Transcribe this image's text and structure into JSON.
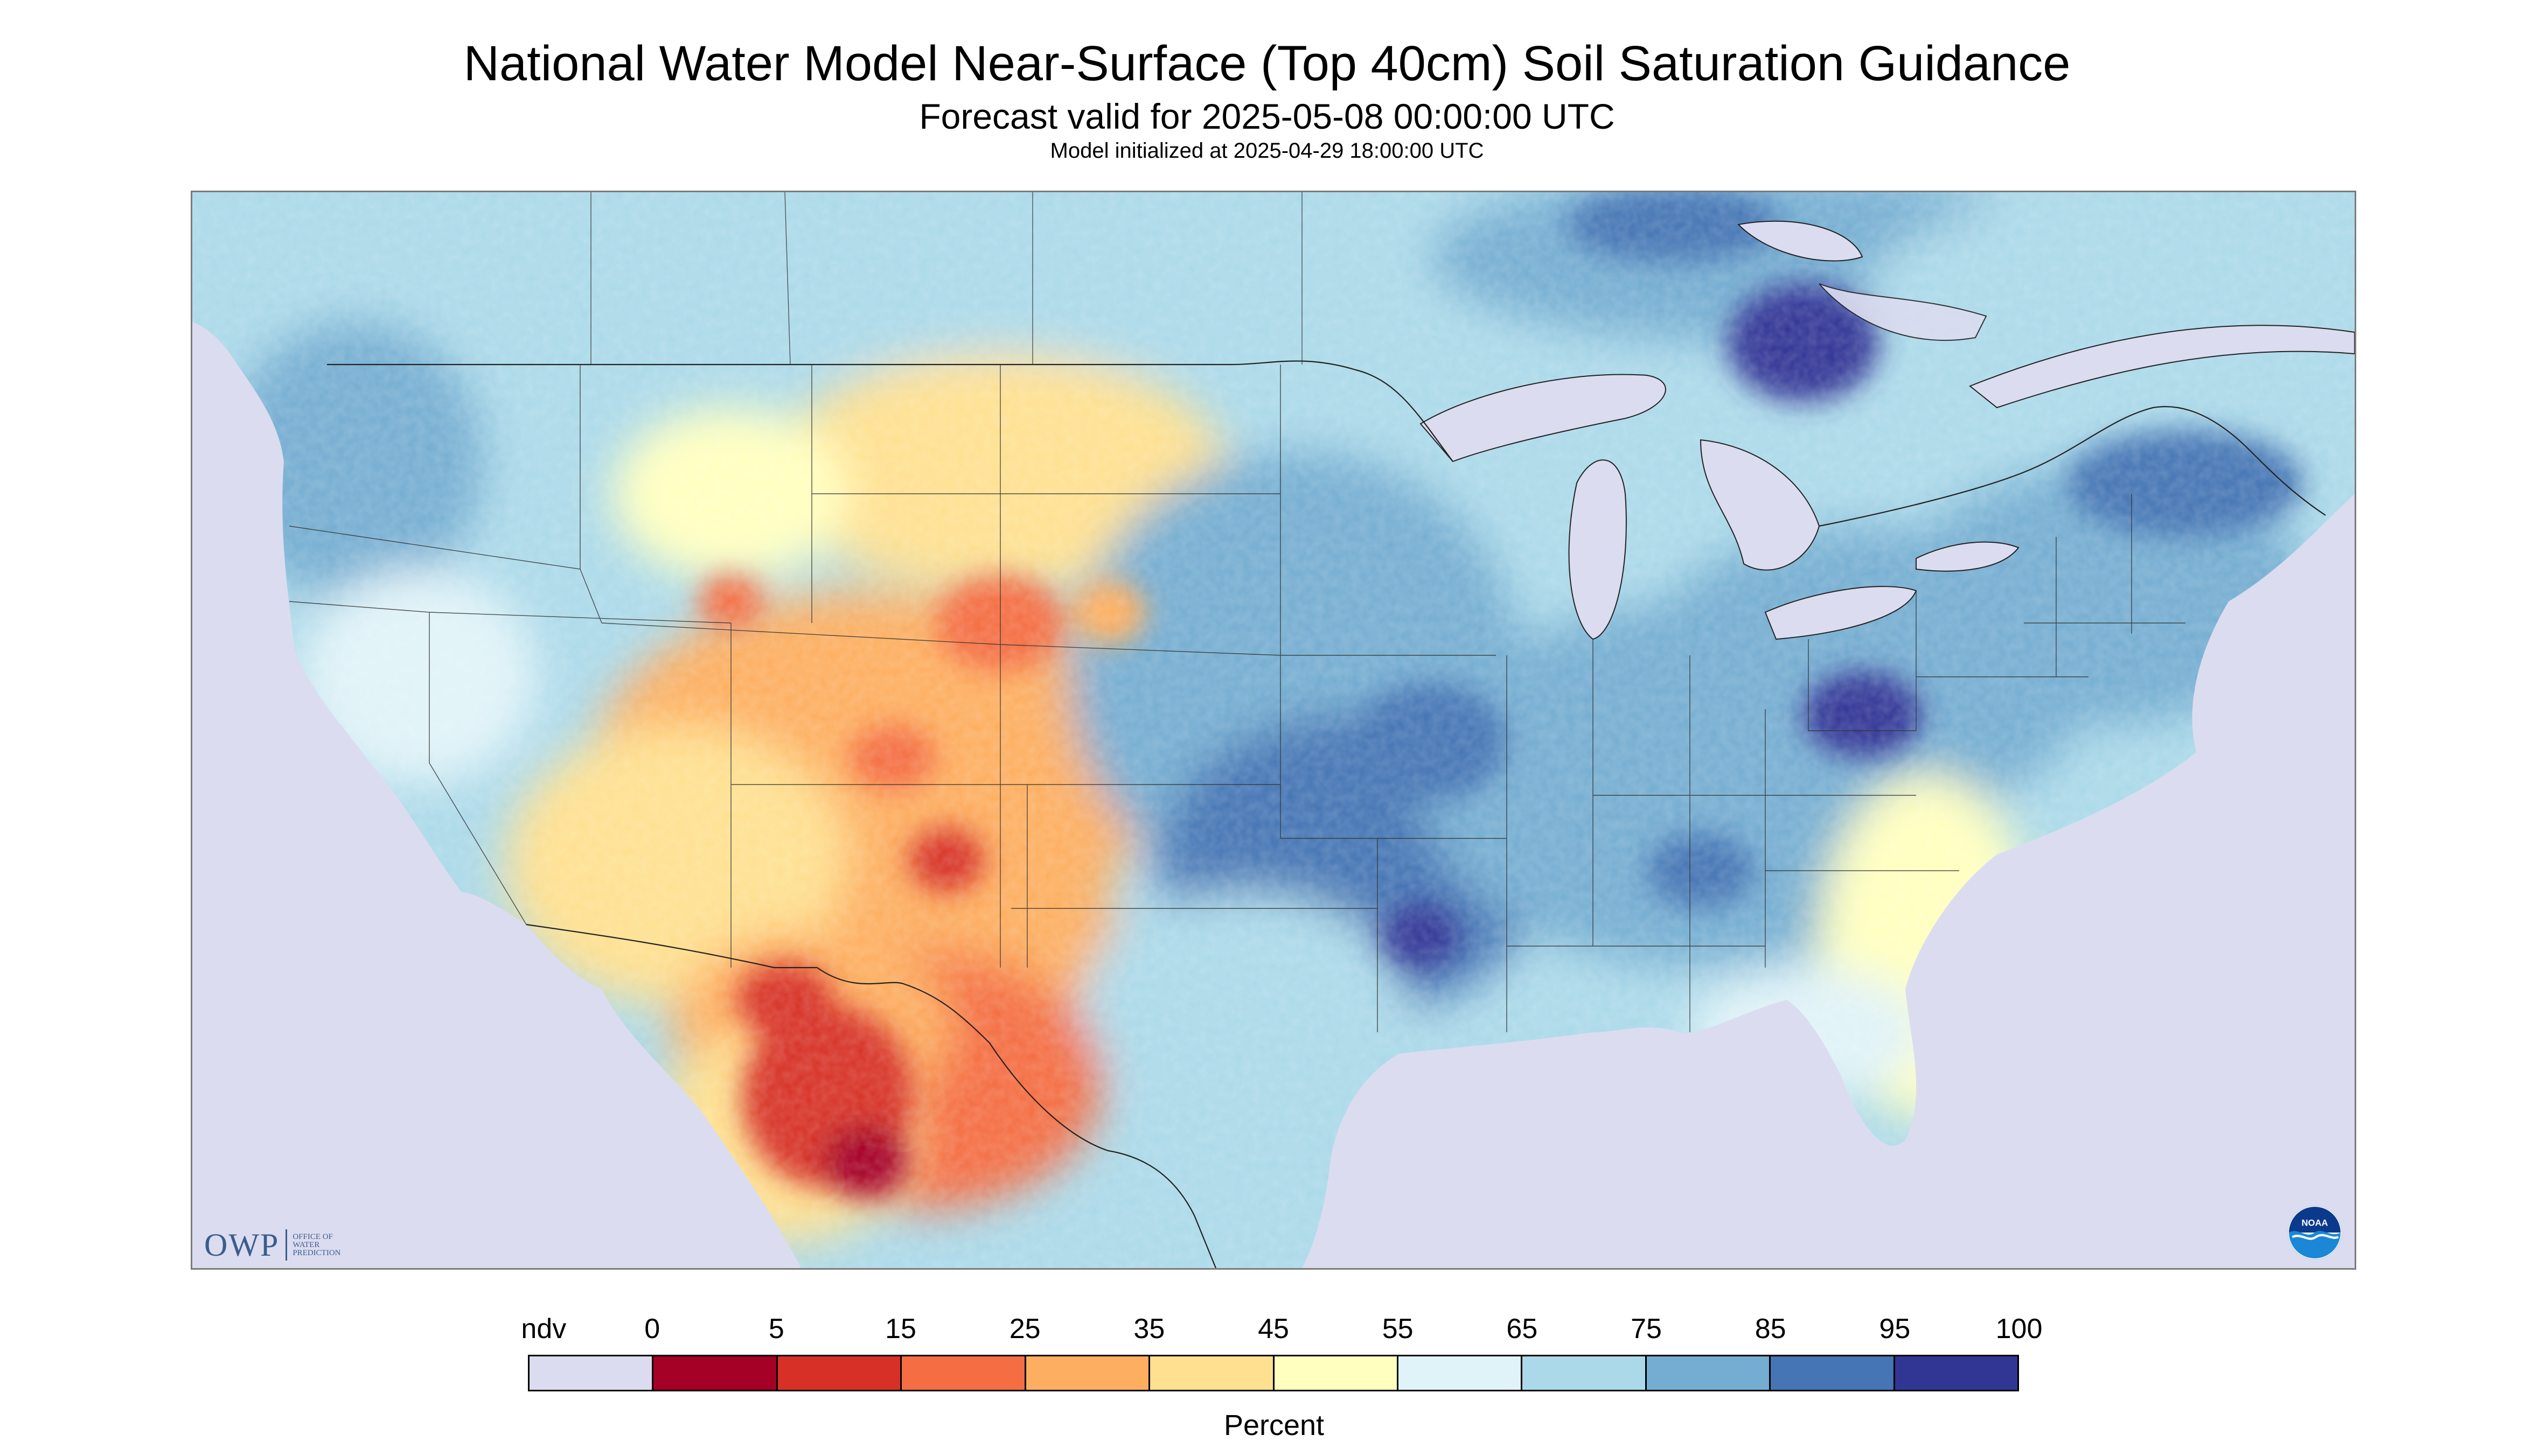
{
  "title": "National Water Model Near-Surface (Top 40cm) Soil Saturation Guidance",
  "forecast_valid": "Forecast valid for 2025-05-08 00:00:00 UTC",
  "model_initialized": "Model initialized at 2025-04-29 18:00:00 UTC",
  "map": {
    "region": "Contiguous United States with southern Canada and northern Mexico",
    "background_color": "#dcdcf0",
    "logos": {
      "owp": {
        "letters": "OWP",
        "sub": [
          "OFFICE OF",
          "WATER",
          "PREDICTION"
        ]
      },
      "noaa": "NOAA"
    }
  },
  "legend": {
    "unit": "Percent",
    "labels": [
      "ndv",
      "0",
      "5",
      "15",
      "25",
      "35",
      "45",
      "55",
      "65",
      "75",
      "85",
      "95",
      "100"
    ],
    "colors": [
      "#dcdcf0",
      "#a50026",
      "#d73027",
      "#f46d43",
      "#fdae61",
      "#fee090",
      "#ffffbf",
      "#e0f3f8",
      "#abd9e9",
      "#74add1",
      "#4575b4",
      "#313695"
    ]
  }
}
